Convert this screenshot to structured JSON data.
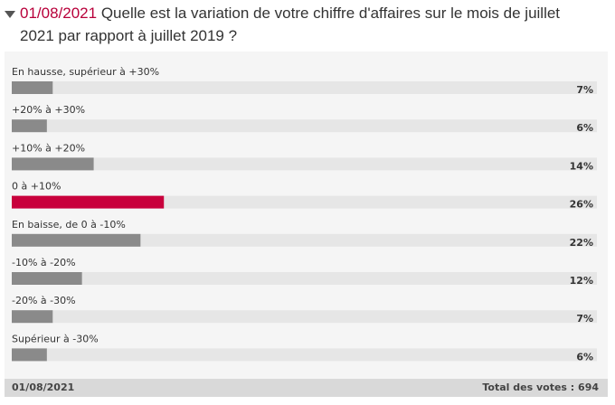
{
  "chart_data": {
    "type": "bar",
    "orientation": "horizontal",
    "date": "01/08/2021",
    "title": "Quelle est la variation de votre chiffre d'affaires sur le mois de juillet 2021 par rapport à juillet 2019 ?",
    "categories": [
      "En hausse, supérieur à +30%",
      "+20% à +30%",
      "+10% à +20%",
      "0 à +10%",
      "En baisse, de 0 à -10%",
      "-10% à -20%",
      "-20% à -30%",
      "Supérieur à -30%"
    ],
    "values": [
      7,
      6,
      14,
      26,
      22,
      12,
      7,
      6
    ],
    "value_labels": [
      "7%",
      "6%",
      "14%",
      "26%",
      "22%",
      "12%",
      "7%",
      "6%"
    ],
    "colors": [
      "#8a8a8a",
      "#8a8a8a",
      "#8a8a8a",
      "#c8003c",
      "#8a8a8a",
      "#8a8a8a",
      "#8a8a8a",
      "#8a8a8a"
    ],
    "xlim": [
      0,
      100
    ],
    "footer_total": "Total des votes : 694"
  }
}
